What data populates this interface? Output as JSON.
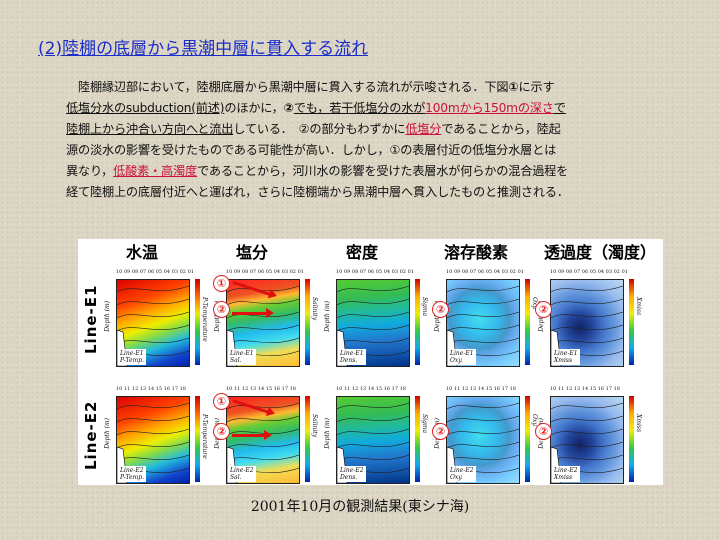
{
  "title": "(2)陸棚の底層から黒潮中層に貫入する流れ",
  "paragraph": {
    "l1": "陸棚縁辺部において，陸棚底層から黒潮中層に貫入する流れが示唆される．下図",
    "l1_num": "①",
    "l1_end": "に示す",
    "l2_a": "低塩分水のsubduction(前述)",
    "l2_b": "のほかに，",
    "l2_num": "②",
    "l2_c": "でも，若干低塩分の水が",
    "l2_red": "100mから150mの深さ",
    "l2_d": "で",
    "l3_a": "陸棚上から沖合い方向へと流出",
    "l3_b": "している．　②の部分もわずかに",
    "l3_red": "低塩分",
    "l3_c": "であることから，陸起",
    "l4": "源の淡水の影響を受けたものである可能性が高い．しかし，①の表層付近の低塩分水層とは",
    "l5_a": "異なり，",
    "l5_red": "低酸素・高濁度",
    "l5_b": "であることから，河川水の影響を受けた表層水が何らかの混合過程を",
    "l6": "経て陸棚上の底層付近へと運ばれ，さらに陸棚端から黒潮中層へ貫入したものと推測される．"
  },
  "figure": {
    "columns": [
      "水温",
      "塩分",
      "密度",
      "溶存酸素",
      "透過度（濁度）"
    ],
    "rows": [
      "Line-E1",
      "Line-E2"
    ],
    "tick_labels_e1": "10 09 08 07 06 05 04 03 02 01",
    "tick_labels_e2": "10 11 12 13 14 15 16 17 18",
    "y_axis": "Depth (m)",
    "right_axes": [
      "P-Temperature",
      "Salinity",
      "Sigma",
      "Oxy.",
      "Xmiss"
    ],
    "tags_e1": [
      "Line-E1\nP-Temp.",
      "Line-E1\nSal.",
      "Line-E1\nDens.",
      "Line-E1\nOxy.",
      "Line-E1\nXmiss"
    ],
    "tags_e2": [
      "Line-E2\nP-Temp.",
      "Line-E2\nSal.",
      "Line-E2\nDens.",
      "Line-E2\nOxy.",
      "Line-E2\nXmiss"
    ],
    "marker1": "①",
    "marker2": "②"
  },
  "caption": "2001年10月の観測結果(東シナ海)"
}
